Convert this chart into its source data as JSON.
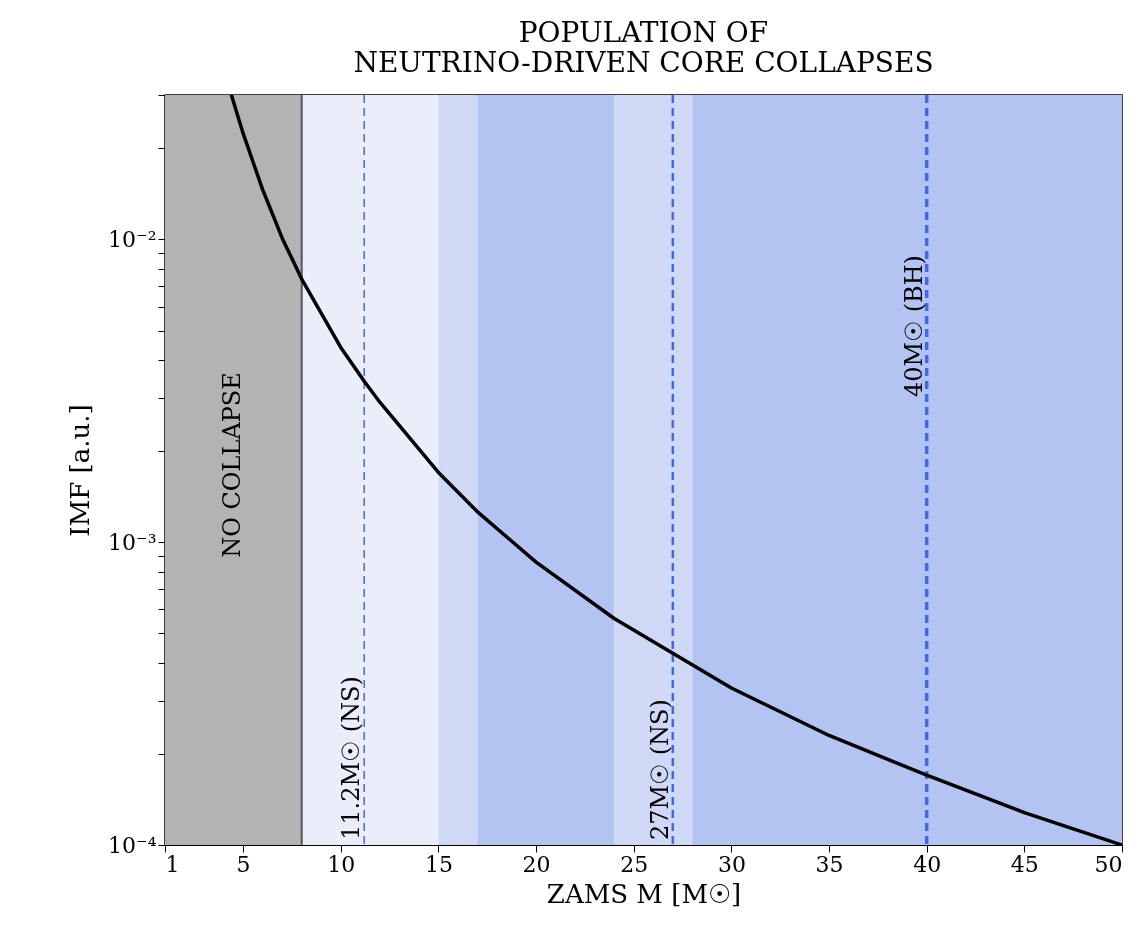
{
  "chart_data": {
    "type": "line",
    "title": "POPULATION OF\nNEUTRINO-DRIVEN CORE COLLAPSES",
    "xlabel": "ZAMS M [M☉]",
    "ylabel": "IMF [a.u.]",
    "x": [
      4.4,
      5,
      6,
      7,
      8,
      10,
      11.2,
      12,
      15,
      17,
      20,
      24,
      27,
      30,
      35,
      40,
      45,
      50
    ],
    "series": [
      {
        "color": "#000000",
        "values": [
          0.03,
          0.0224,
          0.0146,
          0.0101,
          0.0074,
          0.0044,
          0.0034,
          0.0029,
          0.0017,
          0.00126,
          0.00086,
          0.00056,
          0.00043,
          0.00033,
          0.00023,
          0.00017,
          0.000128,
          0.0001
        ]
      }
    ],
    "log": "y",
    "marker": "none",
    "line_style": "solid",
    "grid": false,
    "xlim": [
      1,
      50
    ],
    "xticks": [
      1,
      5,
      10,
      15,
      20,
      25,
      30,
      35,
      40,
      45,
      50
    ],
    "ylim": [
      0.0001,
      0.03
    ],
    "yticks": [
      {
        "value": 0.0001,
        "label": "10⁻⁴"
      },
      {
        "value": 0.0002,
        "label": null
      },
      {
        "value": 0.0003,
        "label": null
      },
      {
        "value": 0.0004,
        "label": null
      },
      {
        "value": 0.0005,
        "label": null
      },
      {
        "value": 0.0006,
        "label": null
      },
      {
        "value": 0.0007,
        "label": null
      },
      {
        "value": 0.0008,
        "label": null
      },
      {
        "value": 0.0009,
        "label": null
      },
      {
        "value": 0.001,
        "label": "10⁻³"
      },
      {
        "value": 0.002,
        "label": null
      },
      {
        "value": 0.003,
        "label": null
      },
      {
        "value": 0.004,
        "label": null
      },
      {
        "value": 0.005,
        "label": null
      },
      {
        "value": 0.006,
        "label": null
      },
      {
        "value": 0.007,
        "label": null
      },
      {
        "value": 0.008,
        "label": null
      },
      {
        "value": 0.009,
        "label": null
      },
      {
        "value": 0.01,
        "label": "10⁻²"
      },
      {
        "value": 0.02,
        "label": null
      },
      {
        "value": 0.03,
        "label": null
      }
    ],
    "bands": [
      {
        "axis": "x",
        "from": 1,
        "to": 8,
        "label": "NO COLLAPSE",
        "color": "#b3b3b3"
      },
      {
        "axis": "x",
        "from": 8,
        "to": 15,
        "color": "#eaeefb"
      },
      {
        "axis": "x",
        "from": 15,
        "to": 17,
        "color": "#cfd9f6"
      },
      {
        "axis": "x",
        "from": 17,
        "to": 24,
        "color": "#b3c3f2"
      },
      {
        "axis": "x",
        "from": 24,
        "to": 28,
        "color": "#cfd9f6"
      },
      {
        "axis": "x",
        "from": 28,
        "to": 50,
        "color": "#b3c3f2"
      }
    ],
    "ref_lines": [
      {
        "axis": "x",
        "value": 8,
        "color": "#555555",
        "line_style": "solid"
      },
      {
        "axis": "x",
        "value": 11.2,
        "label": "11.2M☉ (NS)",
        "color": "#4169e1",
        "line_style": "dashed"
      },
      {
        "axis": "x",
        "value": 27,
        "label": "27M☉ (NS)",
        "color": "#4169e1",
        "line_style": "dashed"
      },
      {
        "axis": "x",
        "value": 40,
        "label": "40M☉ (BH)",
        "color": "#4169e1",
        "line_style": "dashed"
      }
    ]
  }
}
